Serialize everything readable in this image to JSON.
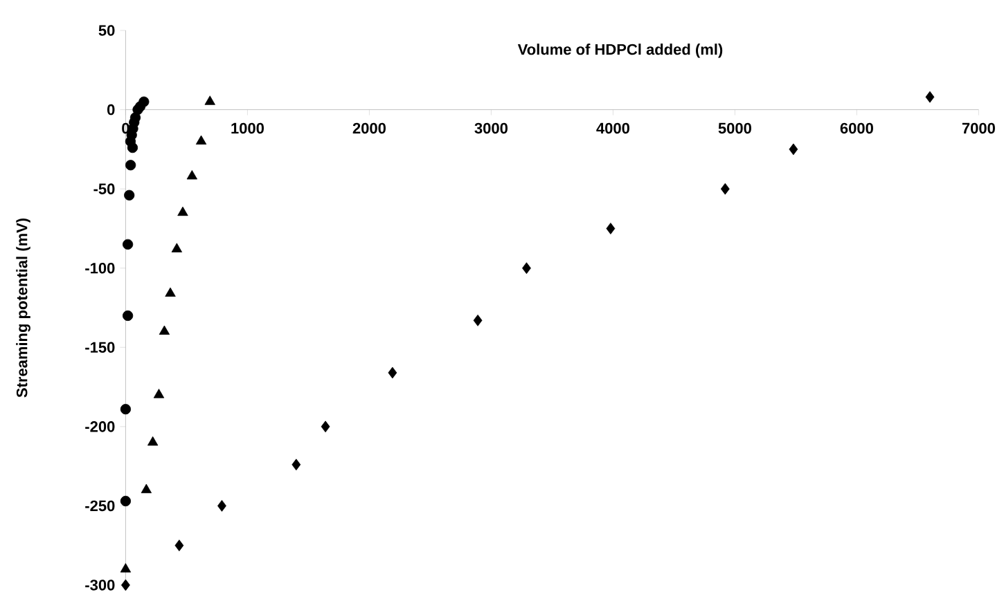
{
  "chart_data": {
    "type": "scatter",
    "xlabel": "Volume of HDPCl  added (ml)",
    "ylabel": "Streaming potential (mV)",
    "xlim": [
      0,
      7000
    ],
    "ylim": [
      -300,
      50
    ],
    "xticks": [
      0,
      1000,
      2000,
      3000,
      4000,
      5000,
      6000,
      7000
    ],
    "yticks": [
      -300,
      -250,
      -200,
      -150,
      -100,
      -50,
      0,
      50
    ],
    "grid": false,
    "series": [
      {
        "color": "#000000",
        "marker": "circle",
        "x": [
          0,
          0,
          18,
          18,
          30,
          41,
          57,
          40,
          50,
          60,
          70,
          80,
          90,
          100,
          120,
          150
        ],
        "values": [
          -247,
          -189,
          -130,
          -85,
          -54,
          -35,
          -24,
          -20,
          -16,
          -12,
          -8,
          -5,
          null,
          0,
          2,
          5
        ]
      },
      {
        "color": "#000000",
        "marker": "triangle",
        "x": [
          0,
          170,
          223,
          273,
          318,
          367,
          420,
          469,
          545,
          620,
          692
        ],
        "values": [
          -290,
          -240,
          -210,
          -180,
          -140,
          -116,
          -88,
          -65,
          -42,
          -20,
          5
        ]
      },
      {
        "color": "#000000",
        "marker": "diamond",
        "x": [
          0,
          440,
          790,
          1400,
          1640,
          2190,
          2890,
          3290,
          3980,
          4920,
          5480,
          6600
        ],
        "values": [
          -300,
          -275,
          -250,
          -224,
          -200,
          -166,
          -133,
          -100,
          -75,
          -50,
          -25,
          8
        ]
      }
    ]
  }
}
